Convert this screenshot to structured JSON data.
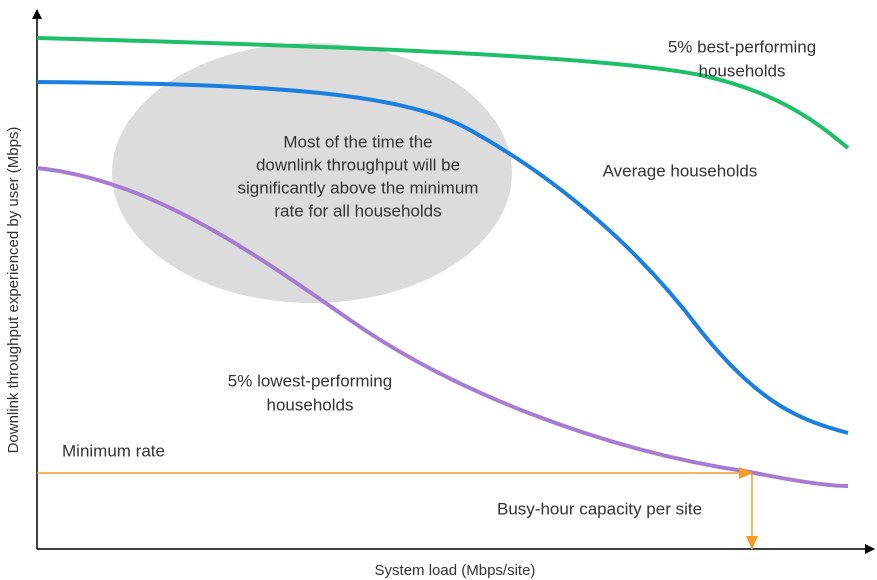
{
  "y_axis_label": "Downlink throughput experienced by user (Mbps)",
  "x_axis_label": "System load (Mbps/site)",
  "annotations": {
    "best": [
      "5% best-performing",
      "households"
    ],
    "average": [
      "Average households"
    ],
    "ellipse": [
      "Most of the time the",
      "downlink throughput will be",
      "significantly above the minimum",
      "rate for all households"
    ],
    "lowest": [
      "5% lowest-performing",
      "households"
    ],
    "minimum": [
      "Minimum rate"
    ],
    "busy": [
      "Busy-hour capacity per site"
    ]
  }
}
